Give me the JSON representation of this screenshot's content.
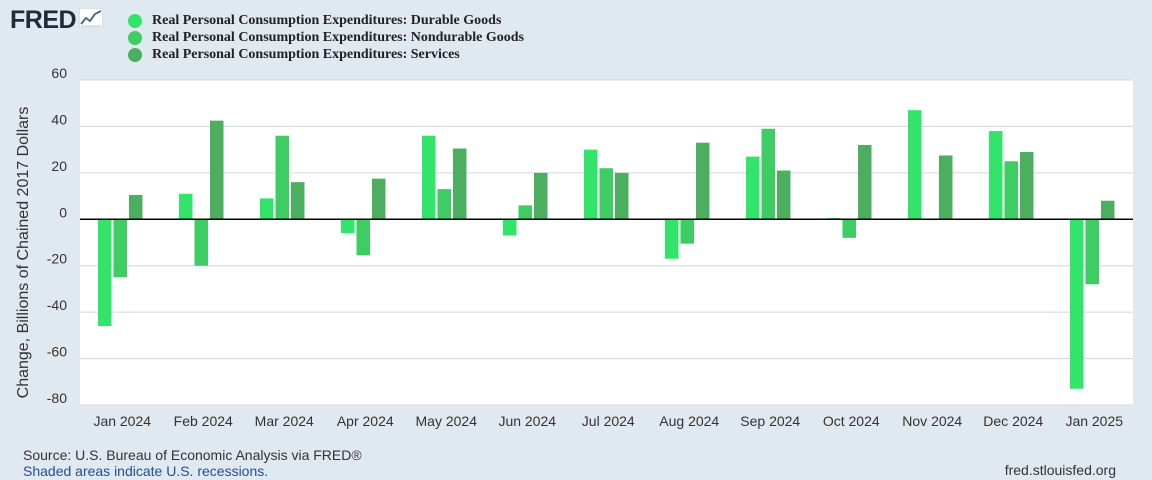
{
  "logo": {
    "text": "FRED",
    "icon": "chart-line-icon"
  },
  "chart_data": {
    "type": "bar",
    "title": "",
    "xlabel": "",
    "ylabel": "Change, Billions of Chained 2017 Dollars",
    "ylim": [
      -80,
      60
    ],
    "yticks": [
      "60",
      "40",
      "20",
      "0",
      "-20",
      "-40",
      "-60",
      "-80"
    ],
    "grid": true,
    "legend_position": "top-left",
    "categories": [
      "Jan 2024",
      "Feb 2024",
      "Mar 2024",
      "Apr 2024",
      "May 2024",
      "Jun 2024",
      "Jul 2024",
      "Aug 2024",
      "Sep 2024",
      "Oct 2024",
      "Nov 2024",
      "Dec 2024",
      "Jan 2025"
    ],
    "series": [
      {
        "name": "Real Personal Consumption Expenditures: Durable Goods",
        "color": "#33e46a",
        "values": [
          -46,
          11,
          9,
          -6,
          36,
          -7,
          30,
          -17,
          27,
          0.5,
          47,
          38,
          -73
        ]
      },
      {
        "name": "Real Personal Consumption Expenditures: Nondurable Goods",
        "color": "#3dcd63",
        "values": [
          -25,
          -20,
          36,
          -15.5,
          13,
          6,
          22,
          -10.5,
          39,
          -8,
          0,
          25,
          -28
        ]
      },
      {
        "name": "Real Personal Consumption Expenditures: Services",
        "color": "#4caf60",
        "values": [
          10.5,
          42.5,
          16,
          17.5,
          30.5,
          20,
          20,
          33,
          21,
          32,
          27.5,
          29,
          8
        ]
      }
    ]
  },
  "footer": {
    "source": "Source: U.S. Bureau of Economic Analysis via FRED®",
    "recessions": "Shaded areas indicate U.S. recessions.",
    "url": "fred.stlouisfed.org"
  }
}
